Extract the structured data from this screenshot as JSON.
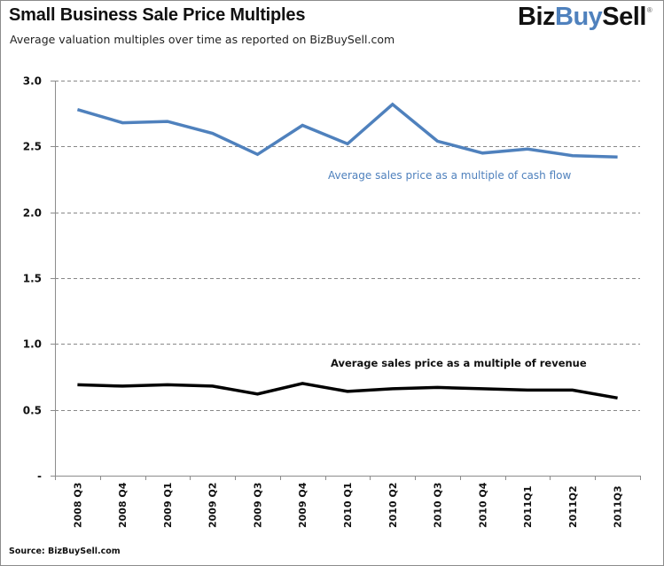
{
  "header": {
    "title": "Small Business Sale Price Multiples",
    "subtitle": "Average valuation multiples over time as reported  on BizBuySell.com",
    "logo": {
      "part1": "Biz",
      "part2": "Buy",
      "part3": "Sell",
      "registered": "®"
    }
  },
  "footer": {
    "source": "Source: BizBuySell.com"
  },
  "colors": {
    "cash_flow": "#4f81bd",
    "revenue": "#000000",
    "grid": "#888888",
    "axis": "#8c8c8c",
    "logo_accent": "#4f81bd"
  },
  "chart_data": {
    "type": "line",
    "title": "Small Business Sale Price Multiples",
    "subtitle": "Average valuation multiples over time as reported on BizBuySell.com",
    "xlabel": "",
    "ylabel": "",
    "ylim": [
      0,
      3.0
    ],
    "yticks": [
      0,
      0.5,
      1.0,
      1.5,
      2.0,
      2.5,
      3.0
    ],
    "ytick_labels": [
      "-",
      "0.5",
      "1.0",
      "1.5",
      "2.0",
      "2.5",
      "3.0"
    ],
    "grid": "horizontal-dashed",
    "legend": "none (inline annotations)",
    "categories": [
      "2008 Q3",
      "2008 Q4",
      "2009 Q1",
      "2009 Q2",
      "2009 Q3",
      "2009 Q4",
      "2010 Q1",
      "2010 Q2",
      "2010 Q3",
      "2010 Q4",
      "2011Q1",
      "2011Q2",
      "2011Q3"
    ],
    "series": [
      {
        "name": "Average sales price as a multiple of cash flow",
        "color": "#4f81bd",
        "values": [
          2.78,
          2.68,
          2.69,
          2.6,
          2.44,
          2.66,
          2.52,
          2.82,
          2.54,
          2.45,
          2.48,
          2.43,
          2.42
        ]
      },
      {
        "name": "Average sales price as a multiple of revenue",
        "color": "#000000",
        "values": [
          0.69,
          0.68,
          0.69,
          0.68,
          0.62,
          0.7,
          0.64,
          0.66,
          0.67,
          0.66,
          0.65,
          0.65,
          0.59
        ]
      }
    ],
    "annotations": [
      {
        "text": "Average sales price as a multiple of cash flow",
        "series": 0
      },
      {
        "text": "Average sales price as a multiple of revenue",
        "series": 1
      }
    ]
  }
}
